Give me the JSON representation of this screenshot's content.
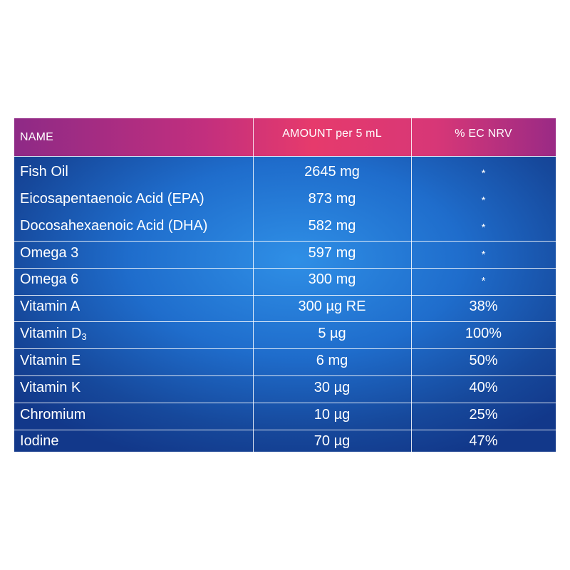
{
  "table": {
    "headers": {
      "name": "NAME",
      "amount": "AMOUNT per  5 mL",
      "nrv": "% EC NRV"
    },
    "rows": [
      {
        "name": "Fish Oil",
        "amount": "2645 mg",
        "nrv": "*"
      },
      {
        "name": "Eicosapentaenoic Acid (EPA)",
        "amount": "873 mg",
        "nrv": "*"
      },
      {
        "name": "Docosahexaenoic Acid (DHA)",
        "amount": "582 mg",
        "nrv": "*"
      },
      {
        "name": "Omega 3",
        "amount": "597 mg",
        "nrv": "*"
      },
      {
        "name": "Omega 6",
        "amount": "300 mg",
        "nrv": "*"
      },
      {
        "name": "Vitamin A",
        "amount": "300 µg RE",
        "nrv": "38%"
      },
      {
        "name": "Vitamin D",
        "name_sub": "3",
        "amount": "5 µg",
        "nrv": "100%"
      },
      {
        "name": "Vitamin E",
        "amount": "6 mg",
        "nrv": "50%"
      },
      {
        "name": "Vitamin K",
        "amount": "30 µg",
        "nrv": "40%"
      },
      {
        "name": "Chromium",
        "amount": "10 µg",
        "nrv": "25%"
      },
      {
        "name": "Iodine",
        "amount": "70 µg",
        "nrv": "47%"
      }
    ]
  },
  "colors": {
    "header_gradient": [
      "#8e2a86",
      "#e63a6c"
    ],
    "body_gradient": [
      "#2f8fe6",
      "#12388a"
    ],
    "text": "#ffffff"
  }
}
